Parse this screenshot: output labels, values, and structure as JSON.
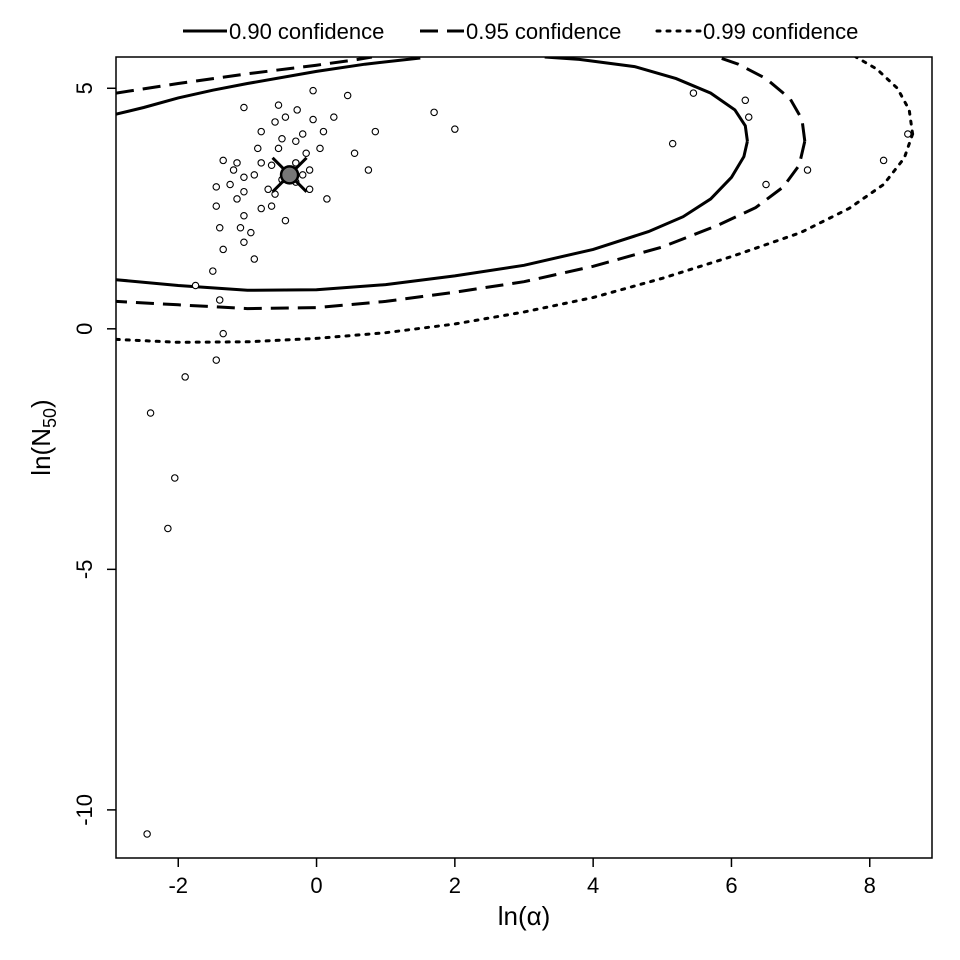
{
  "chart_data": {
    "type": "scatter",
    "title": "",
    "xlabel": "ln(α)",
    "ylabel_main": "ln(N",
    "ylabel_sub": "50",
    "ylabel_close": ")",
    "xlim": [
      -2.9,
      8.9
    ],
    "ylim": [
      -11.0,
      5.65
    ],
    "xticks": [
      -2,
      0,
      2,
      4,
      6,
      8
    ],
    "yticks": [
      5,
      0,
      -5,
      -10
    ],
    "xtick_labels": [
      "-2",
      "0",
      "2",
      "4",
      "6",
      "8"
    ],
    "ytick_labels": [
      "5",
      "0",
      "-5",
      "-10"
    ],
    "grid": false,
    "legend_placement": "top",
    "legend": [
      {
        "label": "0.90 confidence",
        "style": "solid"
      },
      {
        "label": "0.95 confidence",
        "style": "dashed"
      },
      {
        "label": "0.99 confidence",
        "style": "dotted"
      }
    ],
    "best_fit": {
      "x": -0.39,
      "y": 3.2
    },
    "confidence_regions": [
      {
        "name": "0.90 confidence",
        "style": "solid",
        "points": [
          [
            6.23,
            3.9
          ],
          [
            6.18,
            3.58
          ],
          [
            6.0,
            3.15
          ],
          [
            5.7,
            2.7
          ],
          [
            5.3,
            2.33
          ],
          [
            4.8,
            2.02
          ],
          [
            4.0,
            1.65
          ],
          [
            3.0,
            1.32
          ],
          [
            2.0,
            1.1
          ],
          [
            1.0,
            0.92
          ],
          [
            0.0,
            0.81
          ],
          [
            -1.0,
            0.8
          ],
          [
            -2.0,
            0.9
          ],
          [
            -2.9,
            1.02
          ]
        ]
      },
      {
        "name": "0.90 confidence",
        "style": "solid",
        "points": [
          [
            6.23,
            3.9
          ],
          [
            6.2,
            4.22
          ],
          [
            6.05,
            4.55
          ],
          [
            5.7,
            4.9
          ],
          [
            5.2,
            5.2
          ],
          [
            4.6,
            5.45
          ],
          [
            3.8,
            5.6
          ],
          [
            3.3,
            5.65
          ]
        ]
      },
      {
        "name": "0.90 confidence",
        "style": "solid",
        "points": [
          [
            -2.9,
            4.46
          ],
          [
            -2.5,
            4.6
          ],
          [
            -2.0,
            4.8
          ],
          [
            -1.5,
            4.96
          ],
          [
            -1.0,
            5.1
          ],
          [
            0.0,
            5.35
          ],
          [
            0.7,
            5.5
          ],
          [
            1.5,
            5.63
          ]
        ]
      },
      {
        "name": "0.95 confidence",
        "style": "dashed",
        "points": [
          [
            7.06,
            3.9
          ],
          [
            6.98,
            3.4
          ],
          [
            6.75,
            2.95
          ],
          [
            6.35,
            2.52
          ],
          [
            5.8,
            2.15
          ],
          [
            5.0,
            1.7
          ],
          [
            4.0,
            1.3
          ],
          [
            3.0,
            0.98
          ],
          [
            2.0,
            0.76
          ],
          [
            1.0,
            0.57
          ],
          [
            0.0,
            0.44
          ],
          [
            -1.0,
            0.42
          ],
          [
            -2.0,
            0.5
          ],
          [
            -2.9,
            0.57
          ]
        ]
      },
      {
        "name": "0.95 confidence",
        "style": "dashed",
        "points": [
          [
            7.06,
            3.9
          ],
          [
            7.02,
            4.35
          ],
          [
            6.85,
            4.78
          ],
          [
            6.5,
            5.2
          ],
          [
            6.1,
            5.5
          ],
          [
            5.8,
            5.65
          ]
        ]
      },
      {
        "name": "0.95 confidence",
        "style": "dashed",
        "points": [
          [
            -2.9,
            4.9
          ],
          [
            -2.0,
            5.1
          ],
          [
            -1.0,
            5.3
          ],
          [
            0.0,
            5.48
          ],
          [
            0.6,
            5.6
          ],
          [
            0.8,
            5.65
          ]
        ]
      },
      {
        "name": "0.99 confidence",
        "style": "dotted",
        "points": [
          [
            8.62,
            4.05
          ],
          [
            8.5,
            3.55
          ],
          [
            8.2,
            3.0
          ],
          [
            7.7,
            2.5
          ],
          [
            7.0,
            2.0
          ],
          [
            6.0,
            1.5
          ],
          [
            5.0,
            1.05
          ],
          [
            4.0,
            0.65
          ],
          [
            3.0,
            0.35
          ],
          [
            2.0,
            0.1
          ],
          [
            1.0,
            -0.08
          ],
          [
            0.0,
            -0.2
          ],
          [
            -1.0,
            -0.27
          ],
          [
            -2.0,
            -0.28
          ],
          [
            -2.9,
            -0.22
          ]
        ]
      },
      {
        "name": "0.99 confidence",
        "style": "dotted",
        "points": [
          [
            8.62,
            4.05
          ],
          [
            8.57,
            4.55
          ],
          [
            8.4,
            5.0
          ],
          [
            8.1,
            5.4
          ],
          [
            7.8,
            5.65
          ]
        ]
      }
    ],
    "points": [
      [
        -0.55,
        4.65
      ],
      [
        -0.28,
        4.55
      ],
      [
        -0.45,
        4.4
      ],
      [
        -0.6,
        4.3
      ],
      [
        -0.05,
        4.35
      ],
      [
        0.25,
        4.4
      ],
      [
        -0.8,
        4.1
      ],
      [
        -0.2,
        4.05
      ],
      [
        0.1,
        4.1
      ],
      [
        -0.5,
        3.95
      ],
      [
        -0.3,
        3.9
      ],
      [
        -0.85,
        3.75
      ],
      [
        0.05,
        3.75
      ],
      [
        -0.55,
        3.75
      ],
      [
        -0.15,
        3.65
      ],
      [
        -1.35,
        3.5
      ],
      [
        -0.8,
        3.45
      ],
      [
        -0.65,
        3.4
      ],
      [
        -0.3,
        3.45
      ],
      [
        -1.15,
        3.45
      ],
      [
        -0.1,
        3.3
      ],
      [
        -1.2,
        3.3
      ],
      [
        -0.9,
        3.2
      ],
      [
        -0.2,
        3.2
      ],
      [
        -1.05,
        3.15
      ],
      [
        -0.5,
        3.1
      ],
      [
        -1.25,
        3.0
      ],
      [
        -0.3,
        3.05
      ],
      [
        -1.45,
        2.95
      ],
      [
        -0.1,
        2.9
      ],
      [
        -0.7,
        2.9
      ],
      [
        -1.05,
        2.85
      ],
      [
        -0.6,
        2.8
      ],
      [
        -1.15,
        2.7
      ],
      [
        0.15,
        2.7
      ],
      [
        -1.45,
        2.55
      ],
      [
        -0.65,
        2.55
      ],
      [
        -0.8,
        2.5
      ],
      [
        -1.05,
        2.35
      ],
      [
        -0.45,
        2.25
      ],
      [
        -1.4,
        2.1
      ],
      [
        -1.1,
        2.1
      ],
      [
        -0.95,
        2.0
      ],
      [
        -1.05,
        1.8
      ],
      [
        -1.35,
        1.65
      ],
      [
        -0.9,
        1.45
      ],
      [
        -1.5,
        1.2
      ],
      [
        -1.75,
        0.9
      ],
      [
        -1.4,
        0.6
      ],
      [
        -1.35,
        -0.1
      ],
      [
        -1.45,
        -0.65
      ],
      [
        -1.9,
        -1.0
      ],
      [
        -2.4,
        -1.75
      ],
      [
        -2.05,
        -3.1
      ],
      [
        -2.15,
        -4.15
      ],
      [
        -2.45,
        -10.5
      ],
      [
        0.45,
        4.85
      ],
      [
        -0.05,
        4.95
      ],
      [
        -1.05,
        4.6
      ],
      [
        0.85,
        4.1
      ],
      [
        0.55,
        3.65
      ],
      [
        0.75,
        3.3
      ],
      [
        1.7,
        4.5
      ],
      [
        2.0,
        4.15
      ],
      [
        5.15,
        3.85
      ],
      [
        5.45,
        4.9
      ],
      [
        6.2,
        4.75
      ],
      [
        6.25,
        4.4
      ],
      [
        6.5,
        3.0
      ],
      [
        7.1,
        3.3
      ],
      [
        8.2,
        3.5
      ],
      [
        8.55,
        4.05
      ]
    ]
  }
}
